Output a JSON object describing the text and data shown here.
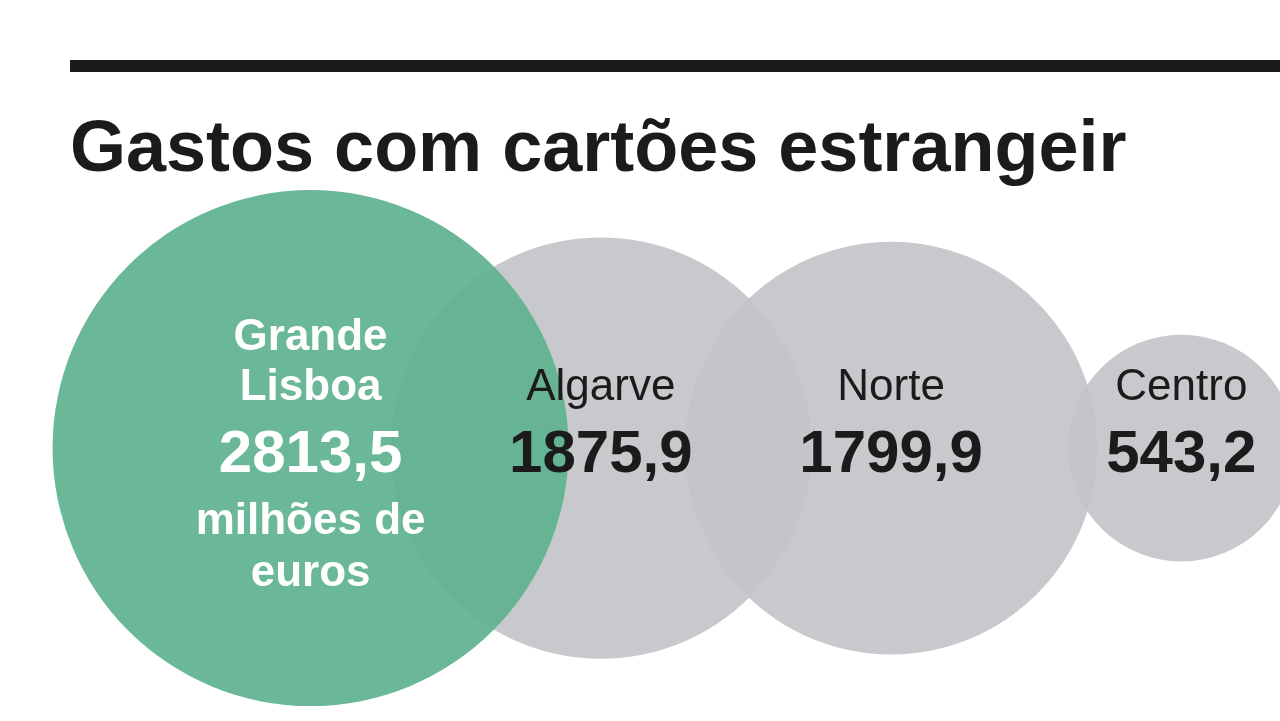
{
  "chart_data": {
    "type": "other",
    "title": "Gastos com cartões estrangeir",
    "categories": [
      "Grande Lisboa",
      "Algarve",
      "Norte",
      "Centro"
    ],
    "values": [
      2813.5,
      1875.9,
      1799.9,
      543.2
    ],
    "value_labels": [
      "2813,5",
      "1875,9",
      "1799,9",
      "543,2"
    ],
    "colors": [
      "#5fb38f",
      "#c4c5c8",
      "#c4c5c8",
      "#c4c5c8"
    ],
    "annotations": [
      "milhões de euros"
    ]
  }
}
